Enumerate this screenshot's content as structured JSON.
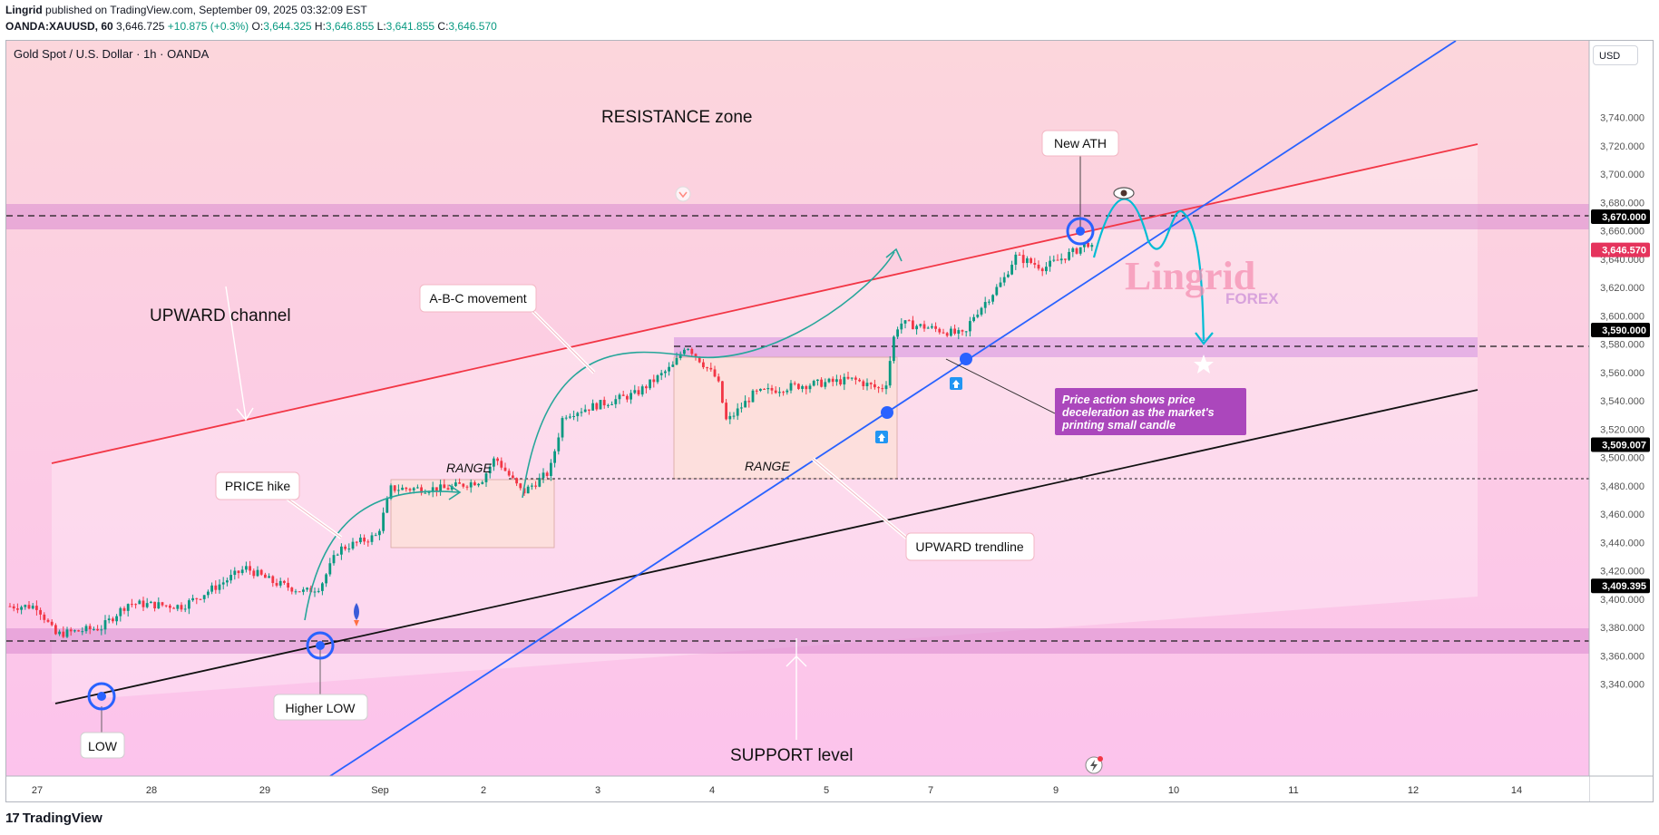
{
  "header": {
    "author": "Lingrid",
    "published_text": "published on TradingView.com, September 09, 2025 03:32:09 EST",
    "symbol": "OANDA:XAUUSD, 60",
    "last": "3,646.725",
    "change": "+10.875 (+0.3%)",
    "o_label": "O:",
    "o_value": "3,644.325",
    "h_label": "H:",
    "h_value": "3,646.855",
    "l_label": "L:",
    "l_value": "3,641.855",
    "c_label": "C:",
    "c_value": "3,646.570"
  },
  "chart_title": "Gold Spot / U.S. Dollar · 1h · OANDA",
  "currency_button": "USD",
  "price_axis": {
    "ticks": [
      "3,740.000",
      "3,720.000",
      "3,700.000",
      "3,680.000",
      "3,660.000",
      "3,640.000",
      "3,620.000",
      "3,600.000",
      "3,580.000",
      "3,560.000",
      "3,540.000",
      "3,520.000",
      "3,500.000",
      "3,480.000",
      "3,460.000",
      "3,440.000",
      "3,420.000",
      "3,400.000",
      "3,380.000",
      "3,360.000",
      "3,340.000"
    ],
    "tick_values": [
      3740,
      3720,
      3700,
      3680,
      3660,
      3640,
      3620,
      3600,
      3580,
      3560,
      3540,
      3520,
      3500,
      3480,
      3460,
      3440,
      3420,
      3400,
      3380,
      3360,
      3340
    ],
    "badges": [
      {
        "text": "3,670.000",
        "value": 3670,
        "color": "#000000"
      },
      {
        "text": "3,646.570",
        "value": 3646.57,
        "color": "#e5335c"
      },
      {
        "text": "3,590.000",
        "value": 3590,
        "color": "#000000"
      },
      {
        "text": "3,509.007",
        "value": 3509.007,
        "color": "#000000"
      },
      {
        "text": "3,409.395",
        "value": 3409.395,
        "color": "#000000"
      }
    ]
  },
  "time_axis": {
    "labels": [
      "27",
      "28",
      "29",
      "Sep",
      "2",
      "3",
      "4",
      "5",
      "7",
      "9",
      "10",
      "11",
      "12",
      "14"
    ]
  },
  "annotations": {
    "resistance": "RESISTANCE zone",
    "new_ath": "New ATH",
    "upward_channel": "UPWARD channel",
    "abc": "A-B-C movement",
    "price_hike": "PRICE hike",
    "range1": "RANGE",
    "range2": "RANGE",
    "upward_trendline": "UPWARD trendline",
    "price_action_line1": "Price action shows price",
    "price_action_line2": "deceleration as the market's",
    "price_action_line3": "printing small candle",
    "support": "SUPPORT level",
    "low": "LOW",
    "higher_low": "Higher LOW"
  },
  "watermark": {
    "line1": "Lingrid",
    "line2": "FOREX"
  },
  "footer": {
    "logo_text": "TradingView",
    "logo_mark": "17"
  },
  "colors": {
    "up": "#089981",
    "down": "#f23645",
    "red_line": "#f23645",
    "blue_line": "#2962ff",
    "accent_purple": "#ab47bc",
    "cyan_path": "#00bcd4",
    "green_arrow": "#26a69a"
  }
}
